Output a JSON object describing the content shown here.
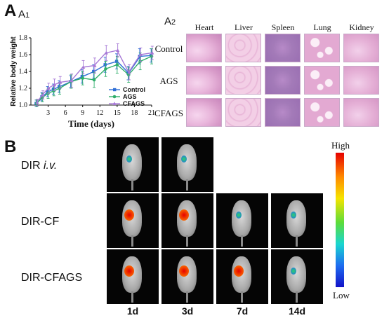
{
  "panels": {
    "A": "A",
    "A1": "A",
    "A1_sub": "1",
    "A2": "A",
    "A2_sub": "2",
    "B": "B"
  },
  "histology": {
    "columns": [
      "Heart",
      "Liver",
      "Spleen",
      "Lung",
      "Kidney"
    ],
    "rows": [
      "Control",
      "AGS",
      "CFAGS"
    ]
  },
  "imaging": {
    "rows": [
      {
        "label_main": "DIR ",
        "label_italic": "i.v.",
        "images": 2
      },
      {
        "label_main": "DIR-CF",
        "label_italic": "",
        "images": 4
      },
      {
        "label_main": "DIR-CFAGS",
        "label_italic": "",
        "images": 4
      }
    ],
    "time_labels": [
      "1d",
      "3d",
      "7d",
      "14d"
    ],
    "colorbar": {
      "high": "High",
      "low": "Low"
    }
  },
  "chart_data": {
    "type": "line",
    "xlabel": "Time (days)",
    "ylabel": "Relative body weight",
    "xlim": [
      0,
      21
    ],
    "ylim": [
      1.0,
      1.8
    ],
    "xticks": [
      3,
      6,
      9,
      12,
      15,
      18,
      21
    ],
    "yticks": [
      1.0,
      1.2,
      1.4,
      1.6,
      1.8
    ],
    "x": [
      1,
      2,
      3,
      4,
      5,
      7,
      9,
      11,
      13,
      15,
      17,
      19,
      21
    ],
    "legend_position": "bottom-right",
    "series": [
      {
        "name": "Control",
        "color": "#2f6fd6",
        "marker": "square",
        "values": [
          1.02,
          1.1,
          1.16,
          1.19,
          1.22,
          1.28,
          1.34,
          1.4,
          1.48,
          1.52,
          1.38,
          1.58,
          1.59
        ],
        "errors": [
          0.04,
          0.05,
          0.06,
          0.06,
          0.07,
          0.07,
          0.08,
          0.08,
          0.09,
          0.09,
          0.08,
          0.09,
          0.08
        ]
      },
      {
        "name": "AGS",
        "color": "#2fae6a",
        "marker": "circle",
        "values": [
          1.02,
          1.09,
          1.14,
          1.17,
          1.2,
          1.28,
          1.32,
          1.3,
          1.43,
          1.48,
          1.36,
          1.52,
          1.58
        ],
        "errors": [
          0.04,
          0.05,
          0.06,
          0.06,
          0.07,
          0.08,
          0.08,
          0.09,
          0.09,
          0.1,
          0.09,
          0.1,
          0.09
        ]
      },
      {
        "name": "CFAGS",
        "color": "#a678d6",
        "marker": "triangle",
        "values": [
          1.03,
          1.12,
          1.2,
          1.24,
          1.27,
          1.29,
          1.45,
          1.47,
          1.62,
          1.65,
          1.39,
          1.6,
          1.62
        ],
        "errors": [
          0.04,
          0.05,
          0.06,
          0.07,
          0.07,
          0.08,
          0.08,
          0.09,
          0.09,
          0.08,
          0.09,
          0.08,
          0.08
        ]
      }
    ]
  }
}
